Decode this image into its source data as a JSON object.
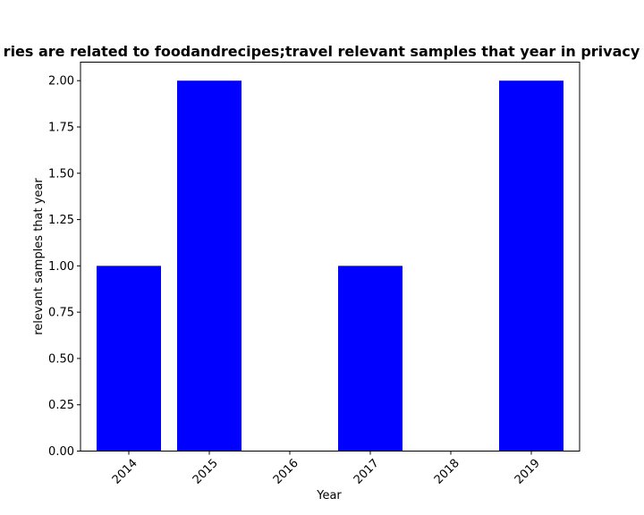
{
  "chart_data": {
    "type": "bar",
    "title": "ries are related to foodandrecipes;travel relevant samples that year in privacy p",
    "xlabel": "Year",
    "ylabel": "relevant samples that year",
    "categories": [
      "2014",
      "2015",
      "2016",
      "2017",
      "2018",
      "2019"
    ],
    "values": [
      1,
      2,
      0,
      1,
      0,
      2
    ],
    "ylim": [
      0,
      2.1
    ],
    "yticks": [
      "0.00",
      "0.25",
      "0.50",
      "0.75",
      "1.00",
      "1.25",
      "1.50",
      "1.75",
      "2.00"
    ],
    "bar_color": "#0000ff",
    "grid": false,
    "legend": "none"
  }
}
